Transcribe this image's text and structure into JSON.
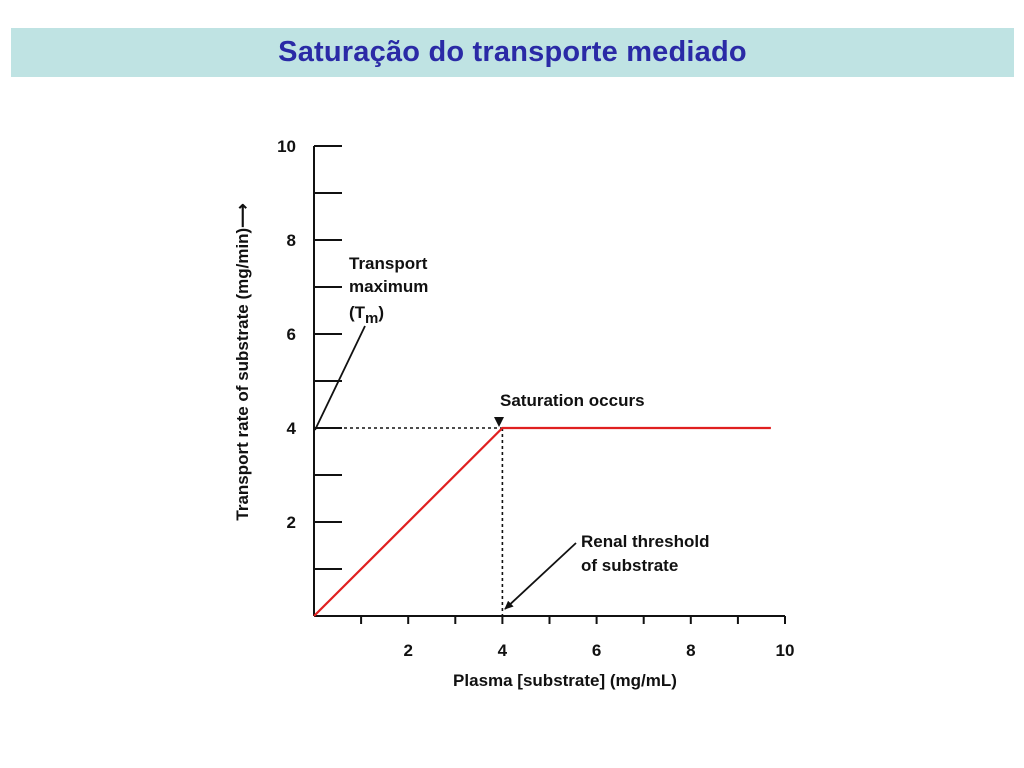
{
  "slide": {
    "title": "Saturação do transporte mediado"
  },
  "chart_data": {
    "type": "line",
    "title": "",
    "xlabel": "Plasma [substrate] (mg/mL)",
    "ylabel": "Transport rate of substrate (mg/min)⟶",
    "xlim": [
      0,
      10
    ],
    "ylim": [
      0,
      10
    ],
    "x_ticks_major": [
      2,
      4,
      6,
      8,
      10
    ],
    "x_ticks_minor": [
      1,
      3,
      5,
      7,
      9
    ],
    "y_ticks_major": [
      2,
      4,
      6,
      8,
      10
    ],
    "y_ticks_minor": [
      1,
      3,
      5,
      7,
      9
    ],
    "series": [
      {
        "color": "#e02020",
        "x": [
          0,
          4,
          9.7
        ],
        "y": [
          0,
          4,
          4
        ]
      }
    ],
    "reference_lines": [
      {
        "kind": "horizontal-dotted",
        "y": 4,
        "x_from": 0,
        "x_to": 4
      },
      {
        "kind": "vertical-dotted",
        "x": 4,
        "y_from": 0,
        "y_to": 4
      }
    ],
    "annotations": [
      {
        "id": "tm",
        "lines": [
          "Transport",
          "maximum",
          "(T",
          "m",
          ")"
        ],
        "points_to": {
          "x": 0,
          "y": 4
        }
      },
      {
        "id": "saturation",
        "text": "Saturation occurs",
        "points_to": {
          "x": 4,
          "y": 4
        }
      },
      {
        "id": "threshold",
        "lines": [
          "Renal threshold",
          "of substrate"
        ],
        "points_to": {
          "x": 4,
          "y": 0
        }
      }
    ],
    "grid": false,
    "legend": "none"
  }
}
